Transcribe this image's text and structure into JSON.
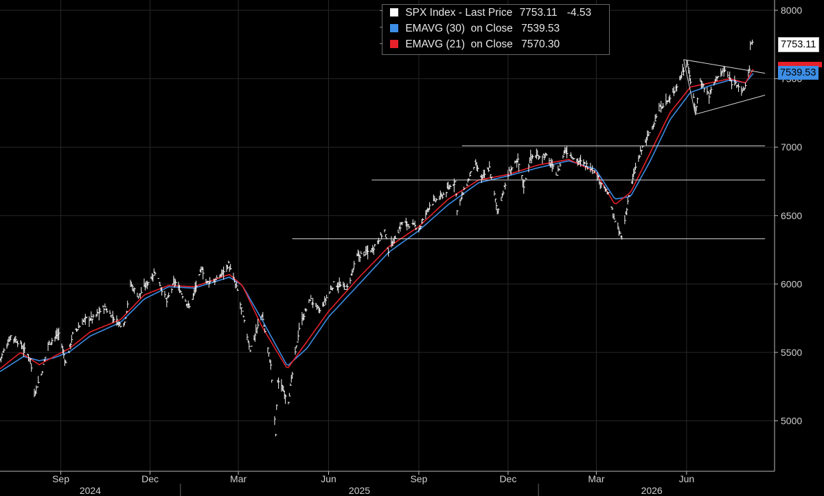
{
  "legend": {
    "items": [
      {
        "label": "SPX Index - Last Price",
        "value": "7753.11",
        "change": "-4.53",
        "color": "#ffffff"
      },
      {
        "label": "EMAVG (30)  on Close",
        "value": "7539.53",
        "color": "#3d8ee6"
      },
      {
        "label": "EMAVG (21)  on Close",
        "value": "7570.30",
        "color": "#e8202a"
      }
    ]
  },
  "tags": {
    "price": "7753.11",
    "ema30": "7539.53"
  },
  "colors": {
    "background": "#000000",
    "grid": "#272727",
    "price": "#ffffff",
    "ema30": "#3d8ee6",
    "ema21": "#e8202a",
    "trendline": "#d9d9d9",
    "axis_text": "#d0d0d0"
  },
  "chart_data": {
    "type": "line",
    "x_axis": {
      "month_ticks": [
        {
          "label": "Sep",
          "date": "2024-09-01"
        },
        {
          "label": "Dec",
          "date": "2024-12-01"
        },
        {
          "label": "Mar",
          "date": "2025-03-01"
        },
        {
          "label": "Jun",
          "date": "2025-06-01"
        },
        {
          "label": "Sep",
          "date": "2025-09-01"
        },
        {
          "label": "Dec",
          "date": "2025-12-01"
        },
        {
          "label": "Mar",
          "date": "2026-03-01"
        },
        {
          "label": "Jun",
          "date": "2026-06-01"
        }
      ],
      "years": [
        "2024",
        "2025",
        "2026"
      ],
      "range": [
        "2024-07-01",
        "2026-08-08"
      ]
    },
    "y_axis": {
      "ticks": [
        5000,
        5500,
        6000,
        6500,
        7000,
        7500,
        8000
      ],
      "range": [
        4630,
        8050
      ],
      "position": "right"
    },
    "grid": true,
    "legend_position": "top-center",
    "series": [
      {
        "name": "SPX Index - Last Price",
        "style": "bars",
        "points": [
          [
            "2024-07-01",
            5450
          ],
          [
            "2024-07-12",
            5620
          ],
          [
            "2024-07-22",
            5560
          ],
          [
            "2024-08-01",
            5450
          ],
          [
            "2024-08-05",
            5200
          ],
          [
            "2024-08-12",
            5340
          ],
          [
            "2024-08-19",
            5560
          ],
          [
            "2024-08-30",
            5640
          ],
          [
            "2024-09-06",
            5420
          ],
          [
            "2024-09-13",
            5630
          ],
          [
            "2024-09-26",
            5745
          ],
          [
            "2024-10-04",
            5750
          ],
          [
            "2024-10-15",
            5830
          ],
          [
            "2024-10-31",
            5705
          ],
          [
            "2024-11-05",
            5720
          ],
          [
            "2024-11-11",
            6000
          ],
          [
            "2024-11-19",
            5910
          ],
          [
            "2024-12-06",
            6090
          ],
          [
            "2024-12-18",
            5870
          ],
          [
            "2024-12-26",
            6020
          ],
          [
            "2025-01-10",
            5830
          ],
          [
            "2025-01-23",
            6120
          ],
          [
            "2025-01-27",
            6010
          ],
          [
            "2025-02-07",
            6030
          ],
          [
            "2025-02-19",
            6145
          ],
          [
            "2025-02-28",
            5950
          ],
          [
            "2025-03-13",
            5520
          ],
          [
            "2025-03-25",
            5780
          ],
          [
            "2025-04-03",
            5400
          ],
          [
            "2025-04-08",
            4900
          ],
          [
            "2025-04-10",
            5300
          ],
          [
            "2025-04-21",
            5150
          ],
          [
            "2025-05-02",
            5680
          ],
          [
            "2025-05-13",
            5890
          ],
          [
            "2025-05-23",
            5800
          ],
          [
            "2025-06-06",
            6000
          ],
          [
            "2025-06-20",
            5970
          ],
          [
            "2025-06-30",
            6200
          ],
          [
            "2025-07-15",
            6250
          ],
          [
            "2025-07-28",
            6390
          ],
          [
            "2025-08-01",
            6240
          ],
          [
            "2025-08-15",
            6450
          ],
          [
            "2025-09-02",
            6410
          ],
          [
            "2025-09-12",
            6580
          ],
          [
            "2025-09-24",
            6640
          ],
          [
            "2025-10-08",
            6750
          ],
          [
            "2025-10-10",
            6550
          ],
          [
            "2025-10-28",
            6880
          ],
          [
            "2025-11-04",
            6770
          ],
          [
            "2025-11-12",
            6850
          ],
          [
            "2025-11-20",
            6530
          ],
          [
            "2025-12-02",
            6820
          ],
          [
            "2025-12-11",
            6900
          ],
          [
            "2025-12-17",
            6720
          ],
          [
            "2025-12-24",
            6930
          ],
          [
            "2026-01-08",
            6940
          ],
          [
            "2026-01-20",
            6800
          ],
          [
            "2026-01-28",
            6980
          ],
          [
            "2026-02-10",
            6900
          ],
          [
            "2026-02-24",
            6850
          ],
          [
            "2026-03-05",
            6750
          ],
          [
            "2026-03-13",
            6650
          ],
          [
            "2026-03-20",
            6450
          ],
          [
            "2026-03-27",
            6330
          ],
          [
            "2026-04-03",
            6650
          ],
          [
            "2026-04-10",
            6850
          ],
          [
            "2026-04-17",
            7000
          ],
          [
            "2026-04-27",
            7150
          ],
          [
            "2026-05-06",
            7300
          ],
          [
            "2026-05-15",
            7350
          ],
          [
            "2026-05-22",
            7450
          ],
          [
            "2026-05-27",
            7540
          ],
          [
            "2026-06-02",
            7620
          ],
          [
            "2026-06-05",
            7480
          ],
          [
            "2026-06-10",
            7260
          ],
          [
            "2026-06-15",
            7480
          ],
          [
            "2026-06-24",
            7380
          ],
          [
            "2026-07-02",
            7520
          ],
          [
            "2026-07-10",
            7560
          ],
          [
            "2026-07-17",
            7470
          ],
          [
            "2026-07-21",
            7480
          ],
          [
            "2026-07-28",
            7400
          ],
          [
            "2026-07-31",
            7450
          ],
          [
            "2026-08-04",
            7580
          ],
          [
            "2026-08-05",
            7750
          ],
          [
            "2026-08-08",
            7753.11
          ]
        ]
      },
      {
        "name": "EMAVG (30)  on Close",
        "style": "line",
        "points": [
          [
            "2024-07-01",
            5360
          ],
          [
            "2024-07-25",
            5470
          ],
          [
            "2024-08-10",
            5440
          ],
          [
            "2024-08-25",
            5460
          ],
          [
            "2024-09-10",
            5505
          ],
          [
            "2024-10-01",
            5620
          ],
          [
            "2024-11-01",
            5720
          ],
          [
            "2024-11-25",
            5890
          ],
          [
            "2024-12-20",
            5980
          ],
          [
            "2025-01-15",
            5970
          ],
          [
            "2025-02-20",
            6050
          ],
          [
            "2025-03-05",
            5990
          ],
          [
            "2025-03-25",
            5740
          ],
          [
            "2025-04-20",
            5400
          ],
          [
            "2025-05-10",
            5530
          ],
          [
            "2025-06-01",
            5760
          ],
          [
            "2025-07-01",
            5990
          ],
          [
            "2025-08-01",
            6230
          ],
          [
            "2025-09-01",
            6390
          ],
          [
            "2025-10-01",
            6580
          ],
          [
            "2025-11-01",
            6740
          ],
          [
            "2025-12-01",
            6790
          ],
          [
            "2026-01-01",
            6850
          ],
          [
            "2026-02-01",
            6900
          ],
          [
            "2026-02-28",
            6840
          ],
          [
            "2026-03-20",
            6620
          ],
          [
            "2026-04-05",
            6640
          ],
          [
            "2026-04-25",
            6900
          ],
          [
            "2026-05-15",
            7200
          ],
          [
            "2026-06-05",
            7400
          ],
          [
            "2026-06-25",
            7450
          ],
          [
            "2026-07-15",
            7490
          ],
          [
            "2026-07-31",
            7470
          ],
          [
            "2026-08-08",
            7539.53
          ]
        ]
      },
      {
        "name": "EMAVG (21)  on Close",
        "style": "line",
        "points": [
          [
            "2024-07-01",
            5380
          ],
          [
            "2024-07-22",
            5500
          ],
          [
            "2024-08-10",
            5410
          ],
          [
            "2024-08-25",
            5470
          ],
          [
            "2024-09-10",
            5530
          ],
          [
            "2024-10-01",
            5650
          ],
          [
            "2024-11-01",
            5740
          ],
          [
            "2024-11-25",
            5920
          ],
          [
            "2024-12-20",
            5990
          ],
          [
            "2025-01-15",
            5980
          ],
          [
            "2025-02-20",
            6070
          ],
          [
            "2025-03-05",
            5990
          ],
          [
            "2025-03-25",
            5690
          ],
          [
            "2025-04-20",
            5380
          ],
          [
            "2025-05-10",
            5580
          ],
          [
            "2025-06-01",
            5800
          ],
          [
            "2025-07-01",
            6040
          ],
          [
            "2025-08-01",
            6270
          ],
          [
            "2025-09-01",
            6420
          ],
          [
            "2025-10-01",
            6620
          ],
          [
            "2025-11-01",
            6760
          ],
          [
            "2025-12-01",
            6800
          ],
          [
            "2026-01-01",
            6870
          ],
          [
            "2026-02-01",
            6910
          ],
          [
            "2026-02-28",
            6820
          ],
          [
            "2026-03-20",
            6580
          ],
          [
            "2026-04-05",
            6670
          ],
          [
            "2026-04-25",
            6960
          ],
          [
            "2026-05-15",
            7250
          ],
          [
            "2026-06-05",
            7440
          ],
          [
            "2026-06-25",
            7470
          ],
          [
            "2026-07-15",
            7500
          ],
          [
            "2026-07-31",
            7470
          ],
          [
            "2026-08-08",
            7570.3
          ]
        ]
      }
    ],
    "annotations": {
      "horizontal_lines": [
        {
          "value": 7010,
          "from": "2025-10-15",
          "to": "2026-08-20"
        },
        {
          "value": 6760,
          "from": "2025-07-15",
          "to": "2026-08-20"
        },
        {
          "value": 6330,
          "from": "2025-04-25",
          "to": "2026-08-20"
        }
      ],
      "trendlines": [
        {
          "from": [
            "2026-05-29",
            7640
          ],
          "to": [
            "2026-08-20",
            7540
          ]
        },
        {
          "from": [
            "2026-06-10",
            7240
          ],
          "to": [
            "2026-08-20",
            7380
          ]
        },
        {
          "from": [
            "2026-05-29",
            7640
          ],
          "to": [
            "2026-06-10",
            7240
          ]
        }
      ]
    }
  }
}
